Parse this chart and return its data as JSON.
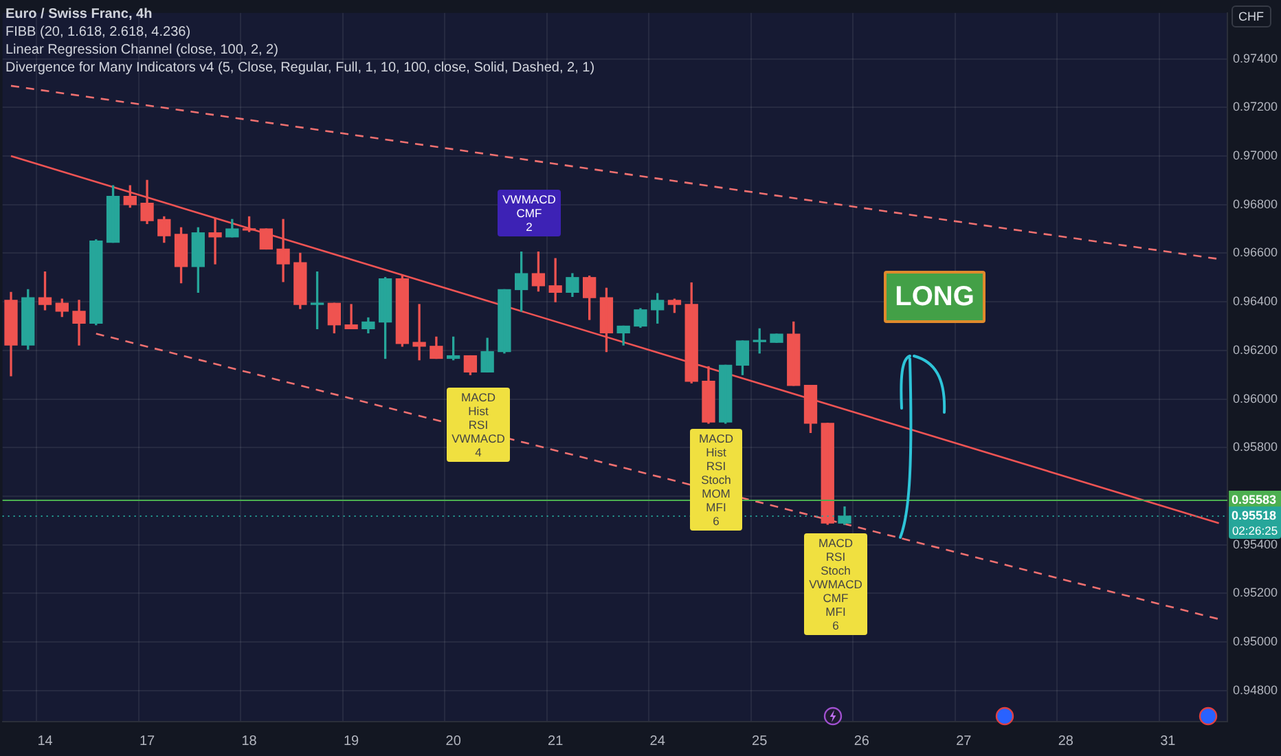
{
  "chart_data": {
    "type": "candlestick",
    "title": "Euro / Swiss Franc, 4h",
    "subtitle": "FIBB (20, 1.618, 2.618, 4.236)\nLinear Regression Channel (close, 100, 2, 2)\nDivergence for Many Indicators v4 (5, Close, Regular, Full, 1, 10, 100, close, Solid, Dashed, 2, 1)",
    "ylabel": "CHF",
    "categories": [
      null,
      null,
      "14",
      null,
      null,
      null,
      null,
      null,
      "17",
      null,
      null,
      null,
      null,
      null,
      "18",
      null,
      null,
      null,
      null,
      null,
      "19",
      null,
      null,
      null,
      null,
      null,
      "20",
      null,
      null,
      null,
      null,
      null,
      "21",
      null,
      null,
      null,
      null,
      null,
      "24",
      null,
      null,
      null,
      null,
      null,
      "25",
      null,
      null,
      null,
      null,
      null,
      "26",
      null,
      null,
      null,
      null,
      null,
      "27",
      null,
      null,
      null,
      null,
      null,
      "28",
      null,
      null,
      null,
      null,
      null,
      "31",
      null,
      null,
      null
    ],
    "ohlc": [
      [
        0.96406,
        0.96439,
        0.96095,
        0.96222
      ],
      [
        0.96222,
        0.9645,
        0.96205,
        0.96417
      ],
      [
        0.96417,
        0.96523,
        0.96367,
        0.96389
      ],
      [
        0.96394,
        0.96411,
        0.96339,
        0.96361
      ],
      [
        0.96361,
        0.96406,
        0.96222,
        0.96312
      ],
      [
        0.96312,
        0.96655,
        0.96305,
        0.9665
      ],
      [
        0.96645,
        0.96878,
        0.96645,
        0.96834
      ],
      [
        0.96834,
        0.96878,
        0.96789,
        0.968
      ],
      [
        0.96806,
        0.969,
        0.96722,
        0.96734
      ],
      [
        0.96739,
        0.9675,
        0.96645,
        0.96672
      ],
      [
        0.96678,
        0.96705,
        0.96478,
        0.96545
      ],
      [
        0.96545,
        0.96705,
        0.96439,
        0.96684
      ],
      [
        0.96684,
        0.96744,
        0.96556,
        0.96667
      ],
      [
        0.96667,
        0.96739,
        0.96667,
        0.967
      ],
      [
        0.967,
        0.9675,
        0.96689,
        0.96695
      ],
      [
        0.967,
        0.967,
        0.96617,
        0.96617
      ],
      [
        0.96617,
        0.96739,
        0.96483,
        0.96556
      ],
      [
        0.96561,
        0.966,
        0.96372,
        0.96389
      ],
      [
        0.96389,
        0.96523,
        0.96289,
        0.96394
      ],
      [
        0.96394,
        0.96394,
        0.96272,
        0.96305
      ],
      [
        0.96305,
        0.96389,
        0.96289,
        0.96289
      ],
      [
        0.96289,
        0.96334,
        0.96272,
        0.96317
      ],
      [
        0.96317,
        0.965,
        0.96167,
        0.96495
      ],
      [
        0.96495,
        0.96511,
        0.96217,
        0.96228
      ],
      [
        0.96233,
        0.96389,
        0.96161,
        0.96217
      ],
      [
        0.96217,
        0.96255,
        0.96167,
        0.96167
      ],
      [
        0.96167,
        0.96255,
        0.96161,
        0.96178
      ],
      [
        0.96178,
        0.96178,
        0.961,
        0.96111
      ],
      [
        0.96111,
        0.9625,
        0.96111,
        0.96195
      ],
      [
        0.96195,
        0.9645,
        0.96189,
        0.9645
      ],
      [
        0.9645,
        0.96605,
        0.96361,
        0.96516
      ],
      [
        0.96516,
        0.96605,
        0.96444,
        0.96466
      ],
      [
        0.96466,
        0.96578,
        0.964,
        0.96439
      ],
      [
        0.96439,
        0.96516,
        0.96422,
        0.965
      ],
      [
        0.965,
        0.96506,
        0.96327,
        0.96417
      ],
      [
        0.96417,
        0.96456,
        0.96195,
        0.96272
      ],
      [
        0.96272,
        0.963,
        0.96222,
        0.963
      ],
      [
        0.963,
        0.96372,
        0.96295,
        0.96367
      ],
      [
        0.96367,
        0.96434,
        0.96312,
        0.96406
      ],
      [
        0.96406,
        0.96411,
        0.96356,
        0.96389
      ],
      [
        0.96389,
        0.96478,
        0.96066,
        0.96073
      ],
      [
        0.96073,
        0.96133,
        0.959,
        0.95905
      ],
      [
        0.95905,
        0.96139,
        0.959,
        0.96139
      ],
      [
        0.96139,
        0.96239,
        0.961,
        0.96239
      ],
      [
        0.96236,
        0.96289,
        0.96189,
        0.96239
      ],
      [
        0.96233,
        0.96267,
        0.96233,
        0.96267
      ],
      [
        0.96267,
        0.96317,
        0.96056,
        0.96056
      ],
      [
        0.96056,
        0.96056,
        0.95862,
        0.959
      ],
      [
        0.959,
        0.959,
        0.95484,
        0.95489
      ],
      [
        0.95489,
        0.95556,
        0.95484,
        0.95518
      ],
      null,
      null,
      null,
      null,
      null,
      null,
      null,
      null,
      null,
      null,
      null,
      null,
      null,
      null,
      null,
      null,
      null,
      null,
      null,
      null,
      null,
      null
    ],
    "colors": [
      "#ef5350",
      "#26a69a",
      "#ef5350",
      "#ef5350",
      "#ef5350",
      "#26a69a",
      "#26a69a",
      "#ef5350",
      "#ef5350",
      "#ef5350",
      "#ef5350",
      "#26a69a",
      "#ef5350",
      "#26a69a",
      "#ef5350",
      "#ef5350",
      "#ef5350",
      "#ef5350",
      "#26a69a",
      "#ef5350",
      "#ef5350",
      "#26a69a",
      "#26a69a",
      "#ef5350",
      "#ef5350",
      "#ef5350",
      "#26a69a",
      "#ef5350",
      "#26a69a",
      "#26a69a",
      "#26a69a",
      "#ef5350",
      "#ef5350",
      "#26a69a",
      "#ef5350",
      "#ef5350",
      "#26a69a",
      "#26a69a",
      "#26a69a",
      "#ef5350",
      "#ef5350",
      "#ef5350",
      "#26a69a",
      "#26a69a",
      "#26a69a",
      "#26a69a",
      "#ef5350",
      "#ef5350",
      "#ef5350",
      "#26a69a",
      null,
      null,
      null,
      null,
      null,
      null,
      null,
      null,
      null,
      null,
      null,
      null,
      null,
      null,
      null,
      null,
      null,
      null,
      null,
      null,
      null,
      null
    ],
    "series": [
      {
        "type": "line",
        "color": "#f05454",
        "line_style": "solid",
        "values": [
          0.97,
          null,
          null,
          null,
          null,
          null,
          null,
          null,
          null,
          null,
          null,
          null,
          null,
          null,
          null,
          null,
          null,
          null,
          null,
          null,
          null,
          null,
          null,
          null,
          null,
          null,
          null,
          null,
          null,
          null,
          null,
          null,
          null,
          null,
          null,
          null,
          null,
          null,
          null,
          null,
          null,
          null,
          null,
          null,
          null,
          null,
          null,
          null,
          null,
          null,
          null,
          null,
          null,
          null,
          null,
          null,
          null,
          null,
          null,
          null,
          null,
          null,
          null,
          null,
          null,
          null,
          null,
          null,
          null,
          null,
          null,
          0.95489
        ]
      },
      {
        "type": "line",
        "color": "#f07070",
        "line_style": "dashed",
        "values": [
          0.97289,
          null,
          null,
          null,
          null,
          null,
          null,
          null,
          null,
          null,
          null,
          null,
          null,
          null,
          null,
          null,
          null,
          null,
          null,
          null,
          null,
          null,
          null,
          null,
          null,
          null,
          null,
          null,
          null,
          null,
          null,
          null,
          null,
          null,
          null,
          null,
          null,
          null,
          null,
          null,
          null,
          null,
          null,
          null,
          null,
          null,
          null,
          null,
          null,
          null,
          null,
          null,
          null,
          null,
          null,
          null,
          null,
          null,
          null,
          null,
          null,
          null,
          null,
          null,
          null,
          null,
          null,
          null,
          null,
          null,
          null,
          0.96576
        ]
      },
      {
        "type": "line",
        "color": "#f07070",
        "line_style": "dashed",
        "values": [
          null,
          null,
          null,
          null,
          null,
          0.96269,
          null,
          null,
          null,
          null,
          null,
          null,
          null,
          null,
          null,
          null,
          null,
          null,
          null,
          null,
          null,
          null,
          null,
          null,
          null,
          null,
          null,
          null,
          null,
          null,
          null,
          null,
          null,
          null,
          null,
          null,
          null,
          null,
          null,
          null,
          null,
          null,
          null,
          null,
          null,
          null,
          null,
          null,
          null,
          null,
          null,
          null,
          null,
          null,
          null,
          null,
          null,
          null,
          null,
          null,
          null,
          null,
          null,
          null,
          null,
          null,
          null,
          null,
          null,
          null,
          null,
          0.95094
        ]
      }
    ],
    "ylim": [
      0.94672,
      0.97589
    ],
    "yticks": [
      {
        "value": 0.948,
        "label": "0.94800"
      },
      {
        "value": 0.95,
        "label": "0.95000"
      },
      {
        "value": 0.952,
        "label": "0.95200"
      },
      {
        "value": 0.954,
        "label": "0.95400"
      },
      {
        "value": 0.956,
        "label": null
      },
      {
        "value": 0.958,
        "label": "0.95800"
      },
      {
        "value": 0.96,
        "label": "0.96000"
      },
      {
        "value": 0.962,
        "label": "0.96200"
      },
      {
        "value": 0.964,
        "label": "0.96400"
      },
      {
        "value": 0.966,
        "label": "0.96600"
      },
      {
        "value": 0.968,
        "label": "0.96800"
      },
      {
        "value": 0.97,
        "label": "0.97000"
      },
      {
        "value": 0.972,
        "label": "0.97200"
      },
      {
        "value": 0.974,
        "label": "0.97400"
      }
    ],
    "ref_lines": [
      {
        "axis": "y",
        "value": 0.95583,
        "label": "0.95583",
        "color": "#4caf50",
        "line_style": "solid"
      },
      {
        "axis": "y",
        "value": 0.95518,
        "label": "0.95518",
        "color": "#26a69a",
        "line_style": "dotted"
      }
    ],
    "annotations": [
      "LONG",
      "VWMACD\nCMF\n2",
      "MACD\nHist\nRSI\nVWMACD\n4",
      "MACD\nHist\nRSI\nStoch\nMOM\nMFI\n6",
      "MACD\nRSI\nStoch\nVWMACD\nCMF\nMFI\n6",
      "02:26:25"
    ],
    "grid": true,
    "legend": false
  }
}
